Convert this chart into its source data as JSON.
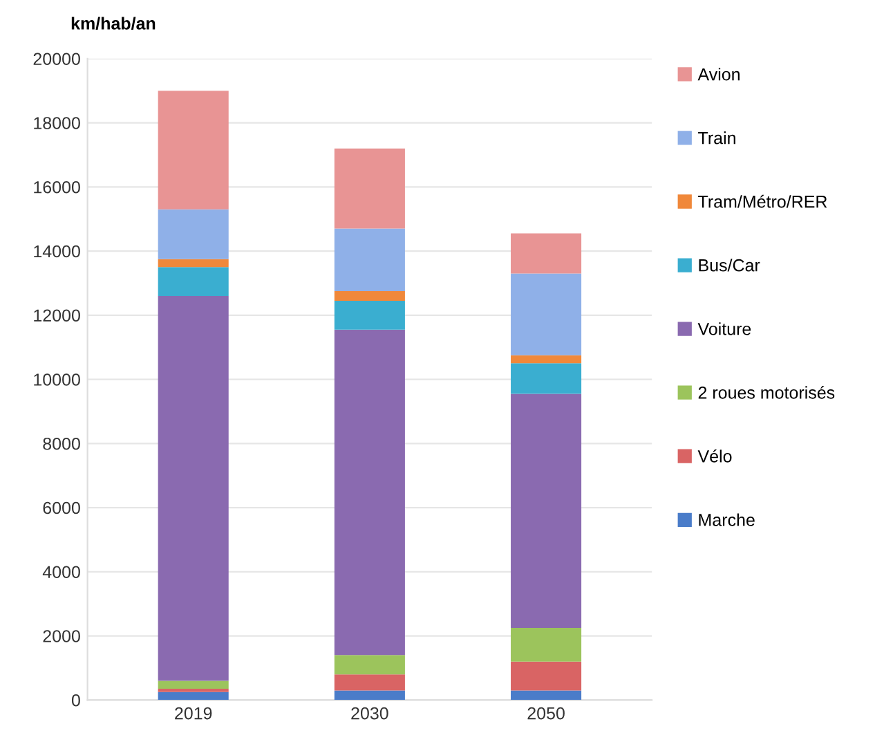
{
  "chart_data": {
    "type": "bar",
    "stacked": true,
    "ylabel": "km/hab/an",
    "categories": [
      "2019",
      "2030",
      "2050"
    ],
    "series": [
      {
        "name": "Marche",
        "color": "#4a7cc9",
        "values": [
          250,
          300,
          300
        ]
      },
      {
        "name": "Vélo",
        "color": "#d96464",
        "values": [
          100,
          500,
          900
        ]
      },
      {
        "name": "2 roues motorisés",
        "color": "#9cc45c",
        "values": [
          250,
          600,
          1050
        ]
      },
      {
        "name": "Voiture",
        "color": "#8a6ab0",
        "values": [
          12000,
          10150,
          7300
        ]
      },
      {
        "name": "Bus/Car",
        "color": "#3aaed0",
        "values": [
          900,
          900,
          950
        ]
      },
      {
        "name": "Tram/Métro/RER",
        "color": "#f0883a",
        "values": [
          250,
          300,
          250
        ]
      },
      {
        "name": "Train",
        "color": "#8fb0e8",
        "values": [
          1550,
          1950,
          2550
        ]
      },
      {
        "name": "Avion",
        "color": "#e89494",
        "values": [
          3700,
          2500,
          1250
        ]
      }
    ],
    "ylim": [
      0,
      20000
    ],
    "yticks": [
      0,
      2000,
      4000,
      6000,
      8000,
      10000,
      12000,
      14000,
      16000,
      18000,
      20000
    ],
    "grid": "y",
    "legend": "right"
  }
}
